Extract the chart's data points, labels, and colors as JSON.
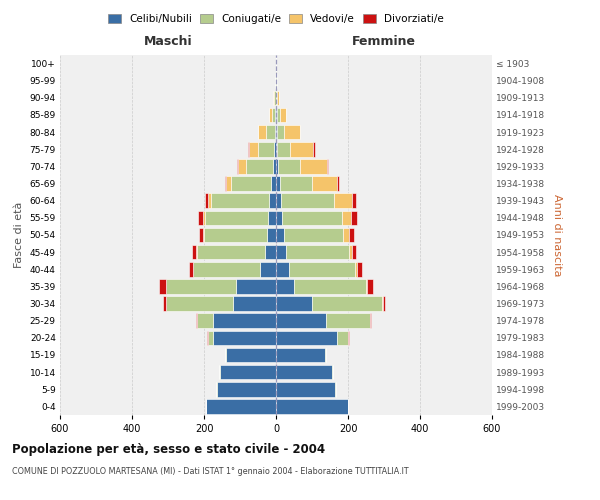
{
  "age_groups": [
    "0-4",
    "5-9",
    "10-14",
    "15-19",
    "20-24",
    "25-29",
    "30-34",
    "35-39",
    "40-44",
    "45-49",
    "50-54",
    "55-59",
    "60-64",
    "65-69",
    "70-74",
    "75-79",
    "80-84",
    "85-89",
    "90-94",
    "95-99",
    "100+"
  ],
  "birth_years": [
    "1999-2003",
    "1994-1998",
    "1989-1993",
    "1984-1988",
    "1979-1983",
    "1974-1978",
    "1969-1973",
    "1964-1968",
    "1959-1963",
    "1954-1958",
    "1949-1953",
    "1944-1948",
    "1939-1943",
    "1934-1938",
    "1929-1933",
    "1924-1928",
    "1919-1923",
    "1914-1918",
    "1909-1913",
    "1904-1908",
    "≤ 1903"
  ],
  "male": {
    "celibi": [
      195,
      165,
      155,
      140,
      175,
      175,
      120,
      110,
      45,
      30,
      25,
      22,
      20,
      14,
      8,
      5,
      4,
      2,
      1,
      1,
      0
    ],
    "coniugati": [
      0,
      1,
      2,
      3,
      15,
      45,
      185,
      195,
      185,
      190,
      175,
      175,
      160,
      110,
      75,
      45,
      25,
      10,
      4,
      2,
      0
    ],
    "vedovi": [
      0,
      0,
      0,
      0,
      0,
      0,
      0,
      1,
      1,
      2,
      3,
      5,
      8,
      15,
      22,
      25,
      20,
      8,
      2,
      1,
      0
    ],
    "divorziati": [
      0,
      0,
      0,
      0,
      1,
      2,
      8,
      20,
      12,
      10,
      12,
      15,
      10,
      3,
      2,
      2,
      1,
      0,
      0,
      0,
      0
    ]
  },
  "female": {
    "nubili": [
      200,
      165,
      155,
      135,
      170,
      140,
      100,
      50,
      35,
      28,
      22,
      18,
      15,
      10,
      6,
      4,
      3,
      2,
      1,
      1,
      0
    ],
    "coniugate": [
      0,
      1,
      2,
      5,
      30,
      120,
      195,
      200,
      185,
      175,
      165,
      165,
      145,
      90,
      60,
      35,
      18,
      8,
      3,
      1,
      0
    ],
    "vedove": [
      0,
      0,
      0,
      0,
      0,
      0,
      1,
      2,
      4,
      8,
      15,
      25,
      50,
      70,
      75,
      65,
      45,
      18,
      5,
      2,
      0
    ],
    "divorziate": [
      0,
      0,
      0,
      0,
      2,
      3,
      8,
      18,
      14,
      12,
      15,
      18,
      12,
      4,
      3,
      3,
      2,
      1,
      0,
      0,
      0
    ]
  },
  "colors": {
    "celibi": "#3A6EA5",
    "coniugati": "#B5CC8E",
    "vedovi": "#F5C46A",
    "divorziati": "#CC1111"
  },
  "xlim": 600,
  "title": "Popolazione per età, sesso e stato civile - 2004",
  "subtitle": "COMUNE DI POZZUOLO MARTESANA (MI) - Dati ISTAT 1° gennaio 2004 - Elaborazione TUTTITALIA.IT",
  "xlabel_left": "Maschi",
  "xlabel_right": "Femmine",
  "ylabel_left": "Fasce di età",
  "ylabel_right": "Anni di nascita",
  "legend_labels": [
    "Celibi/Nubili",
    "Coniugati/e",
    "Vedovi/e",
    "Divorziati/e"
  ],
  "bg_color": "#FFFFFF",
  "plot_bg": "#F0F0F0",
  "grid_color": "#CCCCCC",
  "bar_height": 0.85
}
